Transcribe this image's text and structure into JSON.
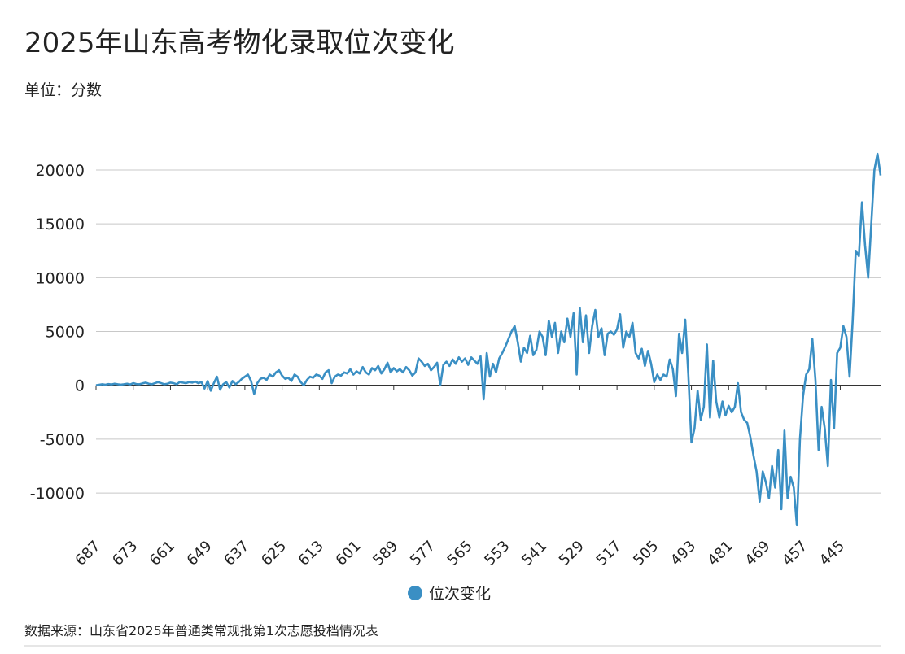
{
  "chart_data": {
    "type": "line",
    "title": "2025年山东高考物化录取位次变化",
    "subtitle": "单位：分数",
    "source": "数据来源：山东省2025年普通类常规批第1次志愿投档情况表",
    "categories": [
      "687",
      null,
      null,
      null,
      null,
      null,
      null,
      null,
      null,
      null,
      null,
      null,
      "673",
      null,
      null,
      null,
      null,
      null,
      null,
      null,
      null,
      null,
      null,
      null,
      "661",
      null,
      null,
      null,
      null,
      null,
      null,
      null,
      null,
      null,
      null,
      null,
      "649",
      null,
      null,
      null,
      null,
      null,
      null,
      null,
      null,
      null,
      null,
      null,
      "637",
      null,
      null,
      null,
      null,
      null,
      null,
      null,
      null,
      null,
      null,
      null,
      "625",
      null,
      null,
      null,
      null,
      null,
      null,
      null,
      null,
      null,
      null,
      null,
      "613",
      null,
      null,
      null,
      null,
      null,
      null,
      null,
      null,
      null,
      null,
      null,
      "601",
      null,
      null,
      null,
      null,
      null,
      null,
      null,
      null,
      null,
      null,
      null,
      "589",
      null,
      null,
      null,
      null,
      null,
      null,
      null,
      null,
      null,
      null,
      null,
      "577",
      null,
      null,
      null,
      null,
      null,
      null,
      null,
      null,
      null,
      null,
      null,
      "565",
      null,
      null,
      null,
      null,
      null,
      null,
      null,
      null,
      null,
      null,
      null,
      "553",
      null,
      null,
      null,
      null,
      null,
      null,
      null,
      null,
      null,
      null,
      null,
      "541",
      null,
      null,
      null,
      null,
      null,
      null,
      null,
      null,
      null,
      null,
      null,
      "529",
      null,
      null,
      null,
      null,
      null,
      null,
      null,
      null,
      null,
      null,
      null,
      "517",
      null,
      null,
      null,
      null,
      null,
      null,
      null,
      null,
      null,
      null,
      null,
      "505",
      null,
      null,
      null,
      null,
      null,
      null,
      null,
      null,
      null,
      null,
      null,
      "493",
      null,
      null,
      null,
      null,
      null,
      null,
      null,
      null,
      null,
      null,
      null,
      "481",
      null,
      null,
      null,
      null,
      null,
      null,
      null,
      null,
      null,
      null,
      null,
      "469",
      null,
      null,
      null,
      null,
      null,
      null,
      null,
      null,
      null,
      null,
      null,
      "457",
      null,
      null,
      null,
      null,
      null,
      null,
      null,
      null,
      null,
      null,
      null,
      "445",
      null,
      null,
      null,
      null,
      null,
      null,
      null,
      null,
      null,
      null,
      null,
      null,
      null
    ],
    "series": [
      {
        "name": "位次变化",
        "color": "#3a8fc4",
        "values": [
          0,
          50,
          100,
          50,
          120,
          80,
          150,
          100,
          60,
          100,
          150,
          80,
          200,
          120,
          100,
          180,
          250,
          150,
          100,
          200,
          300,
          200,
          100,
          150,
          250,
          200,
          100,
          300,
          250,
          200,
          300,
          250,
          350,
          200,
          300,
          -300,
          400,
          -500,
          200,
          800,
          -400,
          100,
          300,
          -200,
          400,
          100,
          300,
          600,
          800,
          1000,
          400,
          -800,
          200,
          600,
          700,
          500,
          1000,
          800,
          1200,
          1400,
          900,
          600,
          700,
          400,
          1000,
          800,
          300,
          0,
          500,
          800,
          700,
          1000,
          900,
          600,
          1200,
          1400,
          200,
          800,
          1000,
          900,
          1200,
          1100,
          1500,
          1000,
          1300,
          1100,
          1700,
          1200,
          1000,
          1600,
          1400,
          1800,
          1100,
          1500,
          2100,
          1200,
          1600,
          1300,
          1500,
          1200,
          1700,
          1400,
          900,
          1200,
          2500,
          2200,
          1800,
          2000,
          1400,
          1700,
          2100,
          0,
          1900,
          2200,
          1800,
          2400,
          2000,
          2600,
          2200,
          2500,
          1900,
          2600,
          2300,
          2000,
          2700,
          -1300,
          3000,
          800,
          2000,
          1200,
          2500,
          3000,
          3600,
          4300,
          5000,
          5500,
          4000,
          2200,
          3500,
          3000,
          4600,
          2800,
          3300,
          5000,
          4500,
          2800,
          6000,
          4500,
          5800,
          3000,
          5000,
          4000,
          6200,
          4500,
          6700,
          1000,
          7200,
          4000,
          6500,
          3000,
          5500,
          7000,
          4500,
          5300,
          2800,
          4800,
          5000,
          4700,
          5200,
          6600,
          3500,
          5000,
          4500,
          5800,
          3000,
          2500,
          3400,
          1800,
          3200,
          2000,
          300,
          1000,
          500,
          1000,
          800,
          2400,
          1500,
          -1000,
          4800,
          3000,
          6100,
          1000,
          -5300,
          -4000,
          -500,
          -3200,
          -2000,
          3800,
          -3000,
          2300,
          -1500,
          -3000,
          -1500,
          -2800,
          -1900,
          -2500,
          -2000,
          200,
          -2500,
          -3200,
          -3500,
          -4800,
          -6500,
          -8000,
          -10800,
          -8000,
          -9000,
          -10500,
          -7500,
          -9500,
          -6000,
          -11500,
          -4200,
          -10500,
          -8500,
          -9500,
          -13000,
          -5000,
          -1000,
          1000,
          1500,
          4300,
          500,
          -6000,
          -2000,
          -4000,
          -7500,
          500,
          -4000,
          3000,
          3500,
          5500,
          4500,
          800,
          6000,
          12500,
          12000,
          17000,
          13000,
          10000,
          15000,
          20000,
          21500,
          19500
        ]
      }
    ],
    "ylim": [
      -13500,
      22000
    ],
    "yticks": [
      -10000,
      -5000,
      0,
      5000,
      10000,
      15000,
      20000
    ],
    "grid": true
  }
}
